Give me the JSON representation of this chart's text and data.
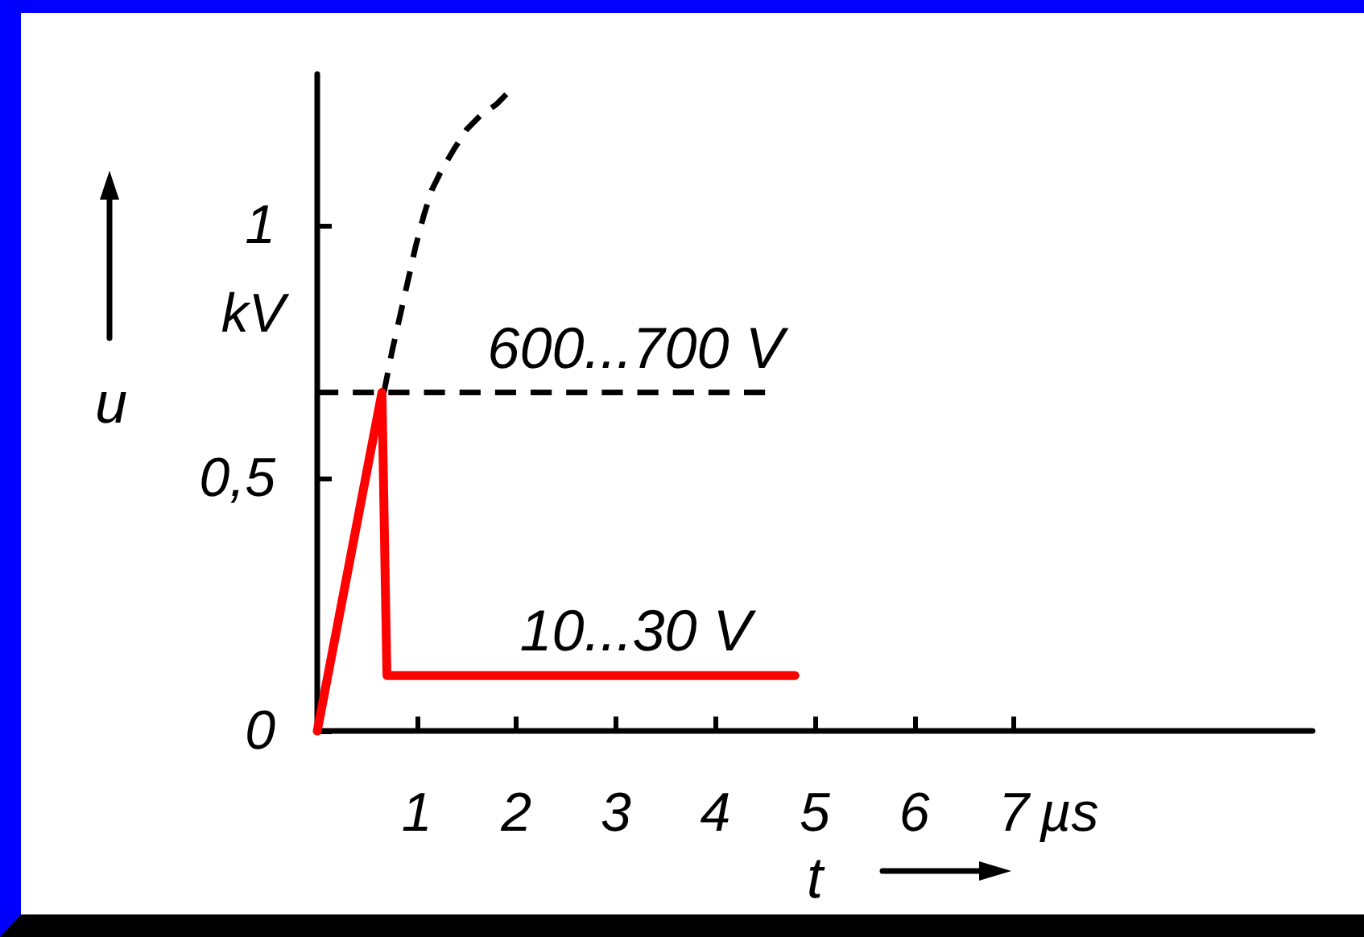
{
  "chart_data": {
    "type": "line",
    "xlabel": "t",
    "ylabel": "u",
    "xlim": [
      0,
      10
    ],
    "xticks": [
      1,
      2,
      3,
      4,
      5,
      6,
      7
    ],
    "ylim": [
      0,
      1.3
    ],
    "yticks": [
      0,
      {
        "value": 0.5,
        "label": "0,5"
      },
      1
    ],
    "marker": "none",
    "series": [
      {
        "color": "#ff0000",
        "line_style": "solid",
        "x": [
          0,
          0.65,
          0.7,
          4.8
        ],
        "values": [
          0,
          0.67,
          0.11,
          0.11
        ]
      },
      {
        "color": "#000000",
        "line_style": "dashed",
        "x": [
          0.67,
          0.75,
          0.83,
          0.91,
          0.99,
          1.07,
          1.15,
          1.25,
          1.37,
          1.5,
          1.65,
          1.8,
          1.9
        ],
        "values": [
          0.67,
          0.75,
          0.82,
          0.89,
          0.96,
          1.02,
          1.07,
          1.11,
          1.15,
          1.19,
          1.22,
          1.24,
          1.26
        ]
      },
      {
        "color": "#000000",
        "line_style": "dashed",
        "x": [
          0,
          4.5
        ],
        "values": [
          0.67,
          0.67
        ]
      }
    ],
    "annotations": [
      "kV",
      "µs",
      {
        "text": "600...700 V",
        "x": 3.2,
        "y": 0.67
      },
      {
        "text": "10...30 V",
        "x": 3.2,
        "y": 0.11
      }
    ]
  }
}
